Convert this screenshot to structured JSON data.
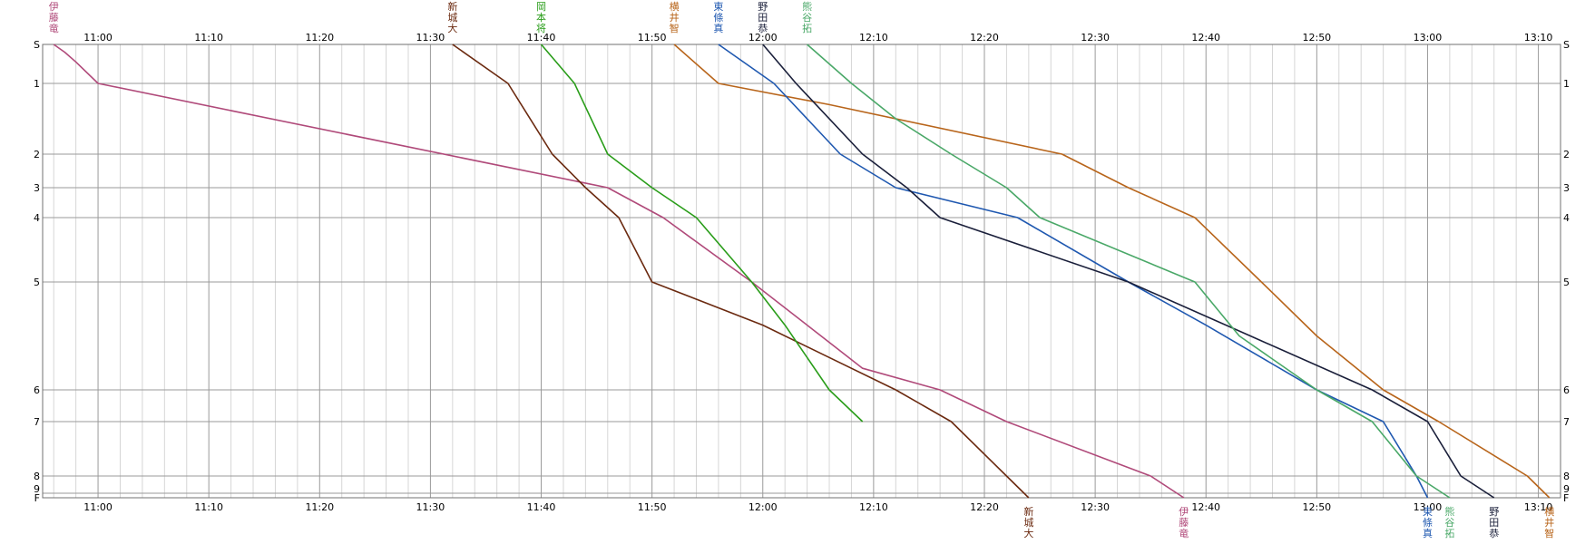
{
  "chart_data": {
    "type": "line",
    "x_unit": "time",
    "x_range": [
      "10:55",
      "13:12"
    ],
    "y_range": [
      "S",
      "F"
    ],
    "x_ticks": [
      "11:00",
      "11:10",
      "11:20",
      "11:30",
      "11:40",
      "11:50",
      "12:00",
      "12:10",
      "12:20",
      "12:30",
      "12:40",
      "12:50",
      "13:00",
      "13:10"
    ],
    "y_ticks": [
      {
        "label": "S",
        "pos": 0
      },
      {
        "label": "1",
        "pos": 1
      },
      {
        "label": "2",
        "pos": 2
      },
      {
        "label": "3",
        "pos": 3
      },
      {
        "label": "4",
        "pos": 4
      },
      {
        "label": "5",
        "pos": 5
      },
      {
        "label": "6",
        "pos": 6
      },
      {
        "label": "7",
        "pos": 7
      },
      {
        "label": "8",
        "pos": 8
      },
      {
        "label": "9",
        "pos": 9
      },
      {
        "label": "F",
        "pos": 10
      }
    ],
    "grid": "on",
    "series": [
      {
        "name": "伊藤竜",
        "label_top": [
          "伊",
          "藤",
          "竜"
        ],
        "label_bottom": [
          "伊",
          "藤",
          "竜"
        ],
        "color": "#b04a7a",
        "points": [
          [
            "10:56",
            "S"
          ],
          [
            "10:57",
            "0.2"
          ],
          [
            "10:58",
            "0.45"
          ],
          [
            "11:00",
            "1"
          ],
          [
            "11:46",
            "3"
          ],
          [
            "11:51",
            "4"
          ],
          [
            "11:59",
            "5"
          ],
          [
            "12:09",
            "5.8"
          ],
          [
            "12:16",
            "6"
          ],
          [
            "12:22",
            "7"
          ],
          [
            "12:35",
            "8"
          ],
          [
            "12:38",
            "F"
          ]
        ]
      },
      {
        "name": "新城大",
        "label_top": [
          "新",
          "城",
          "大"
        ],
        "label_bottom": [
          "新",
          "城",
          "大"
        ],
        "color": "#6b2a10",
        "points": [
          [
            "11:32",
            "S"
          ],
          [
            "11:37",
            "1"
          ],
          [
            "11:41",
            "2"
          ],
          [
            "11:44",
            "3"
          ],
          [
            "11:47",
            "4"
          ],
          [
            "11:50",
            "5"
          ],
          [
            "12:00",
            "5.4"
          ],
          [
            "12:06",
            "5.7"
          ],
          [
            "12:12",
            "6"
          ],
          [
            "12:17",
            "7"
          ],
          [
            "12:22",
            "8"
          ],
          [
            "12:24",
            "F"
          ]
        ]
      },
      {
        "name": "岡本将",
        "label_top": [
          "岡",
          "本",
          "将"
        ],
        "color": "#2a9d1a",
        "points": [
          [
            "11:40",
            "S"
          ],
          [
            "11:43",
            "1"
          ],
          [
            "11:46",
            "2"
          ],
          [
            "11:50",
            "3"
          ],
          [
            "11:54",
            "4"
          ],
          [
            "11:59",
            "5"
          ],
          [
            "12:02",
            "5.4"
          ],
          [
            "12:06",
            "6"
          ],
          [
            "12:09",
            "7"
          ]
        ]
      },
      {
        "name": "横井智",
        "label_top": [
          "横",
          "井",
          "智"
        ],
        "label_bottom": [
          "横",
          "井",
          "智"
        ],
        "color": "#b8651b",
        "points": [
          [
            "11:52",
            "S"
          ],
          [
            "11:56",
            "1"
          ],
          [
            "12:06",
            "1.3"
          ],
          [
            "12:27",
            "2"
          ],
          [
            "12:33",
            "3"
          ],
          [
            "12:39",
            "4"
          ],
          [
            "12:45",
            "5"
          ],
          [
            "12:50",
            "5.5"
          ],
          [
            "12:56",
            "6"
          ],
          [
            "13:01",
            "7"
          ],
          [
            "13:09",
            "8"
          ],
          [
            "13:11",
            "F"
          ]
        ]
      },
      {
        "name": "東條真",
        "label_top": [
          "東",
          "條",
          "真"
        ],
        "label_bottom": [
          "東",
          "條",
          "真"
        ],
        "color": "#1f58b0",
        "points": [
          [
            "11:56",
            "S"
          ],
          [
            "12:01",
            "1"
          ],
          [
            "12:07",
            "2"
          ],
          [
            "12:12",
            "3"
          ],
          [
            "12:23",
            "4"
          ],
          [
            "12:33",
            "5"
          ],
          [
            "12:40",
            "5.4"
          ],
          [
            "12:50",
            "6"
          ],
          [
            "12:56",
            "7"
          ],
          [
            "12:59",
            "8"
          ],
          [
            "13:00",
            "F"
          ]
        ]
      },
      {
        "name": "野田恭",
        "label_top": [
          "野",
          "田",
          "恭"
        ],
        "label_bottom": [
          "野",
          "田",
          "恭"
        ],
        "color": "#1a1f3a",
        "points": [
          [
            "12:00",
            "S"
          ],
          [
            "12:03",
            "1"
          ],
          [
            "12:09",
            "2"
          ],
          [
            "12:13",
            "3"
          ],
          [
            "12:16",
            "4"
          ],
          [
            "12:33",
            "5"
          ],
          [
            "12:44",
            "5.5"
          ],
          [
            "12:55",
            "6"
          ],
          [
            "13:00",
            "7"
          ],
          [
            "13:03",
            "8"
          ],
          [
            "13:06",
            "F"
          ]
        ]
      },
      {
        "name": "熊谷拓",
        "label_top": [
          "熊",
          "谷",
          "拓"
        ],
        "label_bottom": [
          "熊",
          "谷",
          "拓"
        ],
        "color": "#4aa868",
        "points": [
          [
            "12:04",
            "S"
          ],
          [
            "12:08",
            "1"
          ],
          [
            "12:12",
            "1.5"
          ],
          [
            "12:17",
            "2"
          ],
          [
            "12:22",
            "3"
          ],
          [
            "12:25",
            "4"
          ],
          [
            "12:39",
            "5"
          ],
          [
            "12:43",
            "5.5"
          ],
          [
            "12:50",
            "6"
          ],
          [
            "12:55",
            "7"
          ],
          [
            "12:59",
            "8"
          ],
          [
            "13:02",
            "F"
          ]
        ]
      }
    ]
  }
}
